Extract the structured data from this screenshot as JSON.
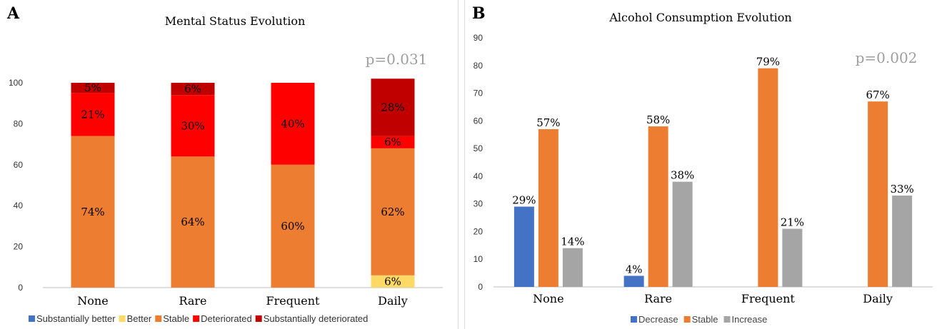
{
  "panel_a": {
    "letter": "A",
    "chart_data": {
      "type": "bar",
      "stacked": true,
      "title": "Mental Status Evolution",
      "annotation": "p=0.031",
      "categories": [
        "None",
        "Rare",
        "Frequent",
        "Daily"
      ],
      "ylim": [
        0,
        100
      ],
      "yticks": [
        "0",
        "20",
        "40",
        "60",
        "80",
        "100"
      ],
      "grid": false,
      "legend_position": "bottom",
      "series": [
        {
          "name": "Substantially better",
          "color": "#4472c4",
          "values": [
            0,
            0,
            0,
            0
          ],
          "labels": [
            "",
            "",
            "",
            ""
          ]
        },
        {
          "name": "Better",
          "color": "#ffd966",
          "values": [
            0,
            0,
            0,
            6
          ],
          "labels": [
            "",
            "",
            "",
            "6%"
          ]
        },
        {
          "name": "Stable",
          "color": "#ed7d31",
          "values": [
            74,
            64,
            60,
            62
          ],
          "labels": [
            "74%",
            "64%",
            "60%",
            "62%"
          ]
        },
        {
          "name": "Deteriorated",
          "color": "#ff0000",
          "values": [
            21,
            30,
            40,
            6
          ],
          "labels": [
            "21%",
            "30%",
            "40%",
            "6%"
          ]
        },
        {
          "name": "Substantially deteriorated",
          "color": "#c00000",
          "values": [
            5,
            6,
            0,
            28
          ],
          "labels": [
            "5%",
            "6%",
            "",
            "28%"
          ]
        }
      ]
    }
  },
  "panel_b": {
    "letter": "B",
    "chart_data": {
      "type": "bar",
      "stacked": false,
      "title": "Alcohol Consumption Evolution",
      "annotation": "p=0.002",
      "categories": [
        "None",
        "Rare",
        "Frequent",
        "Daily"
      ],
      "ylim": [
        0,
        90
      ],
      "yticks": [
        "0",
        "10",
        "20",
        "30",
        "40",
        "50",
        "60",
        "70",
        "80",
        "90"
      ],
      "grid": false,
      "legend_position": "bottom",
      "series": [
        {
          "name": "Decrease",
          "color": "#4472c4",
          "values": [
            29,
            4,
            0,
            0
          ],
          "labels": [
            "29%",
            "4%",
            "",
            ""
          ]
        },
        {
          "name": "Stable",
          "color": "#ed7d31",
          "values": [
            57,
            58,
            79,
            67
          ],
          "labels": [
            "57%",
            "58%",
            "79%",
            "67%"
          ]
        },
        {
          "name": "Increase",
          "color": "#a5a5a5",
          "values": [
            14,
            38,
            21,
            33
          ],
          "labels": [
            "14%",
            "38%",
            "21%",
            "33%"
          ]
        }
      ]
    }
  }
}
